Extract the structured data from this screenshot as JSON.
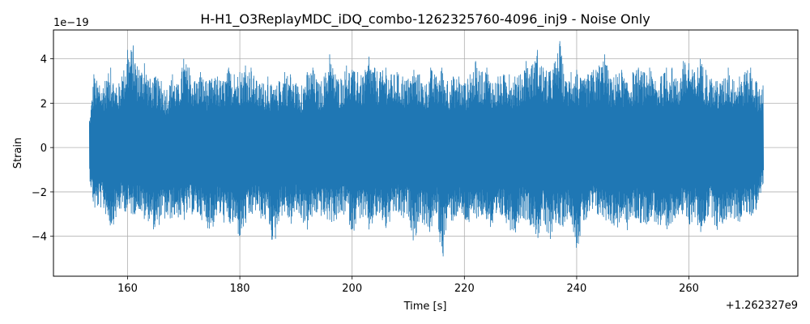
{
  "chart_data": {
    "type": "line",
    "title": "H-H1_O3ReplayMDC_iDQ_combo-1262325760-4096_inj9 - Noise Only",
    "xlabel": "Time [s]",
    "ylabel": "Strain",
    "x_offset_text": "+1.262327e9",
    "y_scale_text": "1e−19",
    "x_offset": 1262327000,
    "y_scale": 1e-19,
    "xlim": [
      146.8,
      279.4
    ],
    "ylim": [
      -5.8,
      5.3
    ],
    "x_ticks": [
      160,
      180,
      200,
      220,
      240,
      260
    ],
    "y_ticks": [
      -4,
      -2,
      0,
      2,
      4
    ],
    "x_tick_labels": [
      "160",
      "180",
      "200",
      "220",
      "240",
      "260"
    ],
    "y_tick_labels": [
      "−4",
      "−2",
      "0",
      "2",
      "4"
    ],
    "grid": true,
    "line_color": "#1f77b4",
    "series": [
      {
        "x_range": [
          153.2,
          273.2
        ],
        "envelope_x": [
          153.2,
          154,
          155,
          156,
          157,
          158,
          159,
          160,
          161,
          162,
          163,
          164,
          165,
          166,
          167,
          168,
          169,
          170,
          171,
          172,
          173,
          174,
          175,
          176,
          177,
          178,
          179,
          180,
          181,
          182,
          183,
          184,
          185,
          186,
          187,
          188,
          189,
          190,
          191,
          192,
          193,
          194,
          195,
          196,
          197,
          198,
          199,
          200,
          201,
          202,
          203,
          204,
          205,
          206,
          207,
          208,
          209,
          210,
          211,
          212,
          213,
          214,
          215,
          216,
          217,
          218,
          219,
          220,
          221,
          222,
          223,
          224,
          225,
          226,
          227,
          228,
          229,
          230,
          231,
          232,
          233,
          234,
          235,
          236,
          237,
          238,
          239,
          240,
          241,
          242,
          243,
          244,
          245,
          246,
          247,
          248,
          249,
          250,
          251,
          252,
          253,
          254,
          255,
          256,
          257,
          258,
          259,
          260,
          261,
          262,
          263,
          264,
          265,
          266,
          267,
          268,
          269,
          270,
          271,
          272,
          273.2
        ],
        "upper": [
          1.2,
          3.3,
          2.8,
          3.0,
          3.6,
          2.7,
          3.2,
          4.4,
          4.6,
          3.5,
          3.8,
          3.1,
          3.2,
          3.0,
          2.6,
          3.3,
          2.8,
          4.0,
          3.6,
          3.0,
          3.4,
          3.0,
          3.1,
          3.2,
          3.0,
          3.6,
          3.3,
          3.4,
          3.7,
          3.6,
          3.0,
          2.9,
          3.2,
          2.6,
          3.0,
          3.4,
          3.3,
          2.9,
          2.8,
          3.4,
          3.6,
          2.9,
          3.2,
          4.2,
          3.3,
          3.1,
          3.7,
          3.5,
          3.4,
          3.2,
          4.1,
          3.6,
          3.4,
          3.6,
          3.3,
          3.4,
          3.2,
          3.1,
          3.5,
          3.3,
          2.8,
          3.6,
          3.2,
          3.6,
          3.0,
          3.2,
          3.2,
          2.9,
          3.3,
          3.9,
          3.4,
          3.6,
          2.9,
          3.2,
          3.3,
          3.3,
          3.2,
          3.3,
          3.9,
          3.7,
          4.4,
          3.6,
          3.4,
          3.8,
          4.8,
          3.0,
          3.4,
          3.5,
          3.0,
          3.3,
          3.5,
          3.7,
          4.2,
          3.1,
          3.3,
          3.5,
          2.9,
          3.4,
          3.6,
          3.4,
          3.6,
          3.0,
          3.2,
          3.6,
          3.6,
          3.0,
          3.9,
          3.8,
          3.4,
          4.0,
          3.5,
          3.1,
          3.0,
          3.0,
          3.6,
          3.0,
          3.2,
          3.4,
          3.6,
          3.0,
          2.8
        ],
        "lower": [
          -1.4,
          -2.9,
          -2.7,
          -3.0,
          -3.7,
          -3.2,
          -2.8,
          -3.0,
          -3.1,
          -2.8,
          -3.4,
          -3.3,
          -4.0,
          -3.2,
          -3.4,
          -3.2,
          -3.2,
          -3.4,
          -3.0,
          -3.1,
          -3.2,
          -3.6,
          -3.8,
          -3.0,
          -3.4,
          -3.6,
          -3.6,
          -4.2,
          -3.6,
          -3.2,
          -2.9,
          -3.4,
          -3.3,
          -4.7,
          -3.2,
          -3.0,
          -3.6,
          -3.0,
          -3.3,
          -3.8,
          -3.2,
          -3.0,
          -3.3,
          -3.4,
          -3.4,
          -3.2,
          -3.0,
          -4.0,
          -3.2,
          -3.3,
          -3.9,
          -3.3,
          -3.2,
          -3.8,
          -3.3,
          -3.0,
          -3.4,
          -3.1,
          -4.4,
          -3.3,
          -3.6,
          -4.0,
          -3.0,
          -5.3,
          -3.3,
          -3.4,
          -3.0,
          -3.4,
          -3.6,
          -3.2,
          -3.2,
          -3.3,
          -4.1,
          -3.3,
          -3.2,
          -3.7,
          -3.9,
          -3.2,
          -3.3,
          -3.6,
          -4.2,
          -3.4,
          -4.6,
          -3.3,
          -3.9,
          -3.3,
          -3.2,
          -4.7,
          -3.6,
          -3.3,
          -3.0,
          -3.2,
          -3.3,
          -3.4,
          -3.8,
          -3.3,
          -3.8,
          -3.2,
          -3.4,
          -3.6,
          -3.3,
          -3.4,
          -3.9,
          -4.3,
          -3.4,
          -3.0,
          -3.2,
          -3.6,
          -3.2,
          -4.0,
          -3.3,
          -3.1,
          -3.8,
          -3.5,
          -3.2,
          -3.3,
          -3.4,
          -3.0,
          -3.2,
          -2.8,
          -1.7
        ]
      }
    ]
  }
}
